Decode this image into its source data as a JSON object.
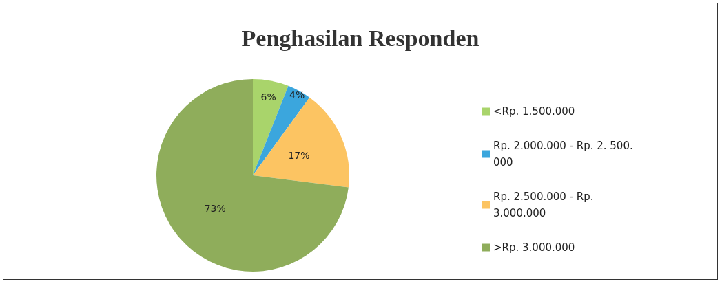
{
  "chart_data": {
    "type": "pie",
    "title": "Penghasilan Responden",
    "categories": [
      "<Rp. 1.500.000",
      "Rp. 2.000.000 - Rp. 2. 500. 000",
      "Rp. 2.500.000 - Rp. 3.000.000",
      ">Rp. 3.000.000"
    ],
    "values": [
      6,
      4,
      17,
      73
    ],
    "colors": [
      "#a9d46b",
      "#3ba6dd",
      "#fcc462",
      "#8fad5b"
    ],
    "value_labels": [
      "6%",
      "4%",
      "17%",
      "73%"
    ],
    "legend": "right"
  }
}
